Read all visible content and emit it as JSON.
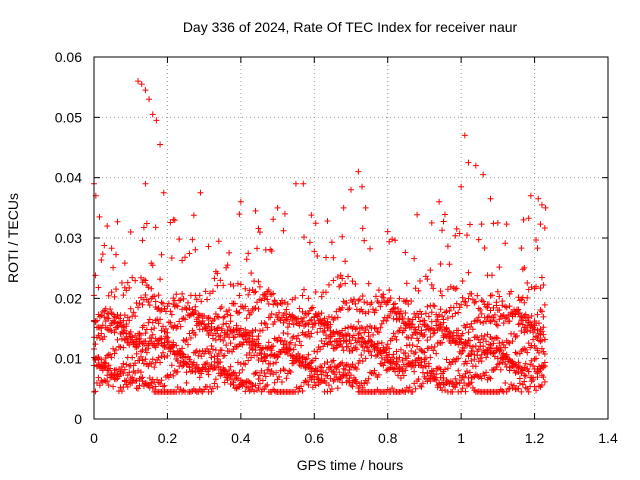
{
  "chart_data": {
    "type": "scatter",
    "title": "Day 336 of 2024, Rate Of TEC Index for receiver naur",
    "xlabel": "GPS time / hours",
    "ylabel": "ROTI / TECUs",
    "xlim": [
      0,
      1.4
    ],
    "ylim": [
      0,
      0.06
    ],
    "xticks": [
      "0",
      "0.2",
      "0.4",
      "0.6",
      "0.8",
      "1",
      "1.2",
      "1.4"
    ],
    "yticks": [
      "0",
      "0.01",
      "0.02",
      "0.03",
      "0.04",
      "0.05",
      "0.06"
    ],
    "grid": true,
    "marker": "+",
    "color": "#ff0000",
    "series": [
      {
        "name": "ROTI",
        "x_range": [
          0,
          1.23
        ],
        "sample_interval_hours": 0.004,
        "band_levels_tecu": [
          0.005,
          0.0075,
          0.0095,
          0.0115,
          0.0135,
          0.0155,
          0.018,
          0.021
        ],
        "highlights": [
          {
            "x": 0.0,
            "y": 0.039
          },
          {
            "x": 0.005,
            "y": 0.037
          },
          {
            "x": 0.015,
            "y": 0.0335
          },
          {
            "x": 0.12,
            "y": 0.056
          },
          {
            "x": 0.13,
            "y": 0.0555
          },
          {
            "x": 0.14,
            "y": 0.0545
          },
          {
            "x": 0.15,
            "y": 0.053
          },
          {
            "x": 0.16,
            "y": 0.0505
          },
          {
            "x": 0.17,
            "y": 0.0495
          },
          {
            "x": 0.18,
            "y": 0.0455
          },
          {
            "x": 0.14,
            "y": 0.039
          },
          {
            "x": 0.19,
            "y": 0.0375
          },
          {
            "x": 0.29,
            "y": 0.0375
          },
          {
            "x": 0.1,
            "y": 0.031
          },
          {
            "x": 0.4,
            "y": 0.036
          },
          {
            "x": 0.44,
            "y": 0.0345
          },
          {
            "x": 0.5,
            "y": 0.035
          },
          {
            "x": 0.52,
            "y": 0.034
          },
          {
            "x": 0.55,
            "y": 0.039
          },
          {
            "x": 0.57,
            "y": 0.039
          },
          {
            "x": 0.68,
            "y": 0.035
          },
          {
            "x": 0.7,
            "y": 0.038
          },
          {
            "x": 0.72,
            "y": 0.041
          },
          {
            "x": 0.73,
            "y": 0.0385
          },
          {
            "x": 0.74,
            "y": 0.035
          },
          {
            "x": 0.92,
            "y": 0.0325
          },
          {
            "x": 0.94,
            "y": 0.036
          },
          {
            "x": 1.0,
            "y": 0.0385
          },
          {
            "x": 1.01,
            "y": 0.047
          },
          {
            "x": 1.02,
            "y": 0.0425
          },
          {
            "x": 1.04,
            "y": 0.042
          },
          {
            "x": 1.06,
            "y": 0.0405
          },
          {
            "x": 1.08,
            "y": 0.0365
          },
          {
            "x": 1.1,
            "y": 0.0325
          },
          {
            "x": 1.17,
            "y": 0.033
          },
          {
            "x": 1.19,
            "y": 0.037
          },
          {
            "x": 1.21,
            "y": 0.0365
          },
          {
            "x": 1.22,
            "y": 0.0355
          },
          {
            "x": 1.23,
            "y": 0.035
          }
        ]
      }
    ]
  }
}
